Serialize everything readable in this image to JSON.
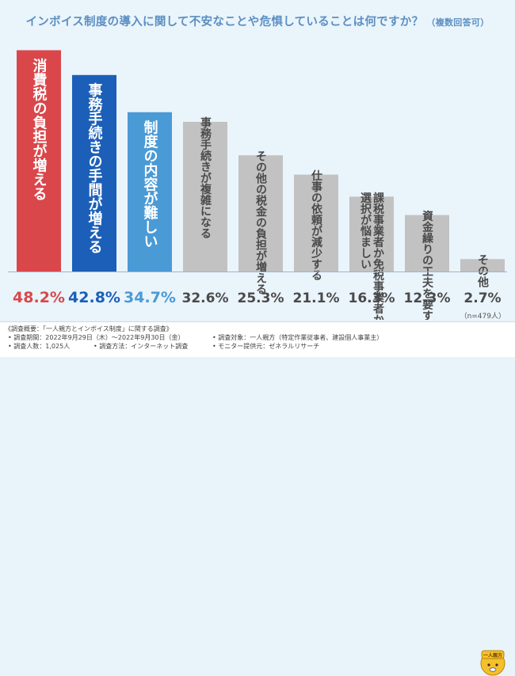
{
  "title": {
    "main": "インボイス制度の導入に関して不安なことや危惧していることは何ですか？",
    "note": "（複数回答可）"
  },
  "sample_size": "（n=479人）",
  "colors": {
    "highlight_1": "#d9474b",
    "highlight_2": "#1b5fb8",
    "highlight_3": "#4a9ad6",
    "gray_bar": "#c2c2c2",
    "gray_text": "#ffffff",
    "gray_value": "#4a4a4a"
  },
  "chart_data": {
    "type": "bar",
    "title": "インボイス制度の導入に関して不安なことや危惧していることは何ですか？（複数回答可）",
    "categories": [
      "消費税の負担が増える",
      "事務手続きの手間が増える",
      "制度の内容が難しい",
      "事務手続きが複雑になる",
      "その他の税金の負担が増える",
      "仕事の依頼が減少する",
      "課税事業者か免税事業者かの選択が悩ましい",
      "資金繰りの工夫を要する",
      "その他"
    ],
    "label_lines": [
      [
        "消費税の負担が増える"
      ],
      [
        "事務手続きの手間が増える"
      ],
      [
        "制度の内容が難しい"
      ],
      [
        "事務手続きが複雑になる"
      ],
      [
        "その他の税金の負担が増える"
      ],
      [
        "仕事の依頼が減少する"
      ],
      [
        "課税事業者か免税事業者かの",
        "選択が悩ましい"
      ],
      [
        "資金繰りの工夫を要する"
      ],
      [
        "その他"
      ]
    ],
    "values": [
      48.2,
      42.8,
      34.7,
      32.6,
      25.3,
      21.1,
      16.3,
      12.3,
      2.7
    ],
    "value_labels": [
      "48.2%",
      "42.8%",
      "34.7%",
      "32.6%",
      "25.3%",
      "21.1%",
      "16.3%",
      "12.3%",
      "2.7%"
    ],
    "ylim": [
      0,
      55
    ],
    "xlabel": "",
    "ylabel": ""
  },
  "footer": {
    "overview": "《調査概要：「一人親方とインボイス制度」に関する調査》",
    "period": "• 調査期間：2022年9月29日（木）～2022年9月30日（金）",
    "count": "• 調査人数：1,025人",
    "method": "• 調査方法：インターネット調査",
    "target": "• 調査対象：一人親方（特定作業従事者、建設個人事業主）",
    "provider": "• モニター提供元：ゼネラルリサーチ",
    "mascot_text": "一人親方"
  }
}
